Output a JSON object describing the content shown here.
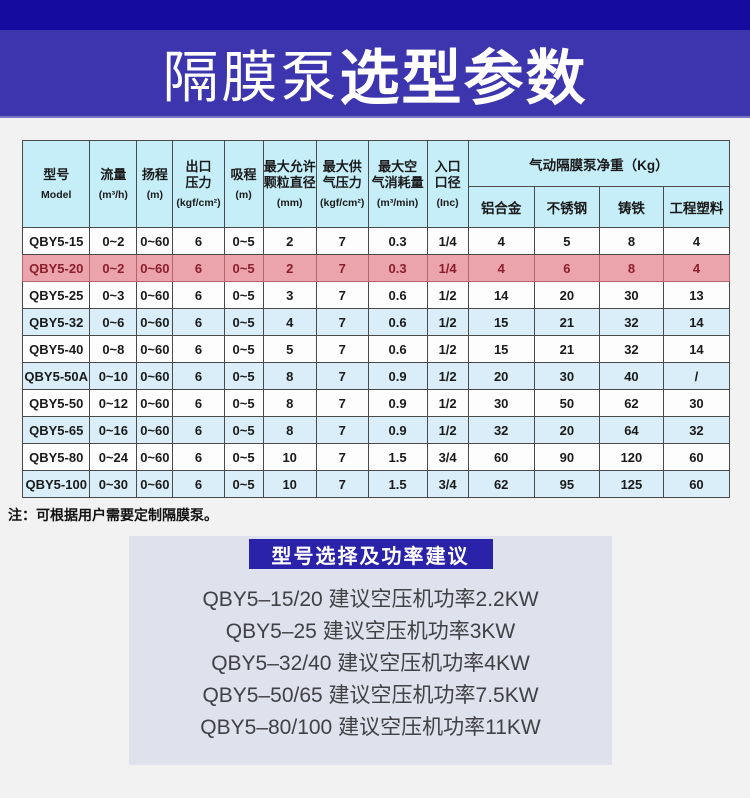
{
  "banner": {
    "top_strip_color": "#150b9e",
    "bg_color": "#3c35ae",
    "title_light": "隔膜泵",
    "title_bold": "选型参数"
  },
  "table": {
    "header_bg": "#c6eef8",
    "alt_row_bg": "#d9eef8",
    "highlight_bg": "#eba3ac",
    "highlight_text_color": "#8b1e2d",
    "columns": [
      {
        "title": "型号",
        "unit": "Model"
      },
      {
        "title": "流量",
        "unit": "(m³/h)"
      },
      {
        "title": "扬程",
        "unit": "(m)"
      },
      {
        "title": "出口\n压力",
        "unit": "(kgf/cm²)"
      },
      {
        "title": "吸程",
        "unit": "(m)"
      },
      {
        "title": "最大允许\n颗粒直径",
        "unit": "(mm)"
      },
      {
        "title": "最大供\n气压力",
        "unit": "(kgf/cm²)"
      },
      {
        "title": "最大空\n气消耗量",
        "unit": "(m³/min)"
      },
      {
        "title": "入口\n口径",
        "unit": "(Inc)"
      }
    ],
    "weight_group": {
      "title": "气动隔膜泵净重（Kg）",
      "materials": [
        "铝合金",
        "不锈钢",
        "铸铁",
        "工程塑料"
      ]
    },
    "rows": [
      {
        "model": "QBY5-15",
        "highlight": false,
        "values": [
          "0~2",
          "0~60",
          "6",
          "0~5",
          "2",
          "7",
          "0.3",
          "1/4",
          "4",
          "5",
          "8",
          "4"
        ]
      },
      {
        "model": "QBY5-20",
        "highlight": true,
        "values": [
          "0~2",
          "0~60",
          "6",
          "0~5",
          "2",
          "7",
          "0.3",
          "1/4",
          "4",
          "6",
          "8",
          "4"
        ]
      },
      {
        "model": "QBY5-25",
        "highlight": false,
        "values": [
          "0~3",
          "0~60",
          "6",
          "0~5",
          "3",
          "7",
          "0.6",
          "1/2",
          "14",
          "20",
          "30",
          "13"
        ]
      },
      {
        "model": "QBY5-32",
        "highlight": false,
        "values": [
          "0~6",
          "0~60",
          "6",
          "0~5",
          "4",
          "7",
          "0.6",
          "1/2",
          "15",
          "21",
          "32",
          "14"
        ]
      },
      {
        "model": "QBY5-40",
        "highlight": false,
        "values": [
          "0~8",
          "0~60",
          "6",
          "0~5",
          "5",
          "7",
          "0.6",
          "1/2",
          "15",
          "21",
          "32",
          "14"
        ]
      },
      {
        "model": "QBY5-50A",
        "highlight": false,
        "values": [
          "0~10",
          "0~60",
          "6",
          "0~5",
          "8",
          "7",
          "0.9",
          "1/2",
          "20",
          "30",
          "40",
          "/"
        ]
      },
      {
        "model": "QBY5-50",
        "highlight": false,
        "values": [
          "0~12",
          "0~60",
          "6",
          "0~5",
          "8",
          "7",
          "0.9",
          "1/2",
          "30",
          "50",
          "62",
          "30"
        ]
      },
      {
        "model": "QBY5-65",
        "highlight": false,
        "values": [
          "0~16",
          "0~60",
          "6",
          "0~5",
          "8",
          "7",
          "0.9",
          "1/2",
          "32",
          "20",
          "64",
          "32"
        ]
      },
      {
        "model": "QBY5-80",
        "highlight": false,
        "values": [
          "0~24",
          "0~60",
          "6",
          "0~5",
          "10",
          "7",
          "1.5",
          "3/4",
          "60",
          "90",
          "120",
          "60"
        ]
      },
      {
        "model": "QBY5-100",
        "highlight": false,
        "values": [
          "0~30",
          "0~60",
          "6",
          "0~5",
          "10",
          "7",
          "1.5",
          "3/4",
          "62",
          "95",
          "125",
          "60"
        ]
      }
    ]
  },
  "note": {
    "text": "注：可根据用户需要定制隔膜泵。"
  },
  "recommendations": {
    "title": "型号选择及功率建议",
    "title_bg": "#2a22a9",
    "lines": [
      "QBY5–15/20  建议空压机功率2.2KW",
      "QBY5–25  建议空压机功率3KW",
      "QBY5–32/40  建议空压机功率4KW",
      "QBY5–50/65  建议空压机功率7.5KW",
      "QBY5–80/100 建议空压机功率11KW"
    ]
  }
}
